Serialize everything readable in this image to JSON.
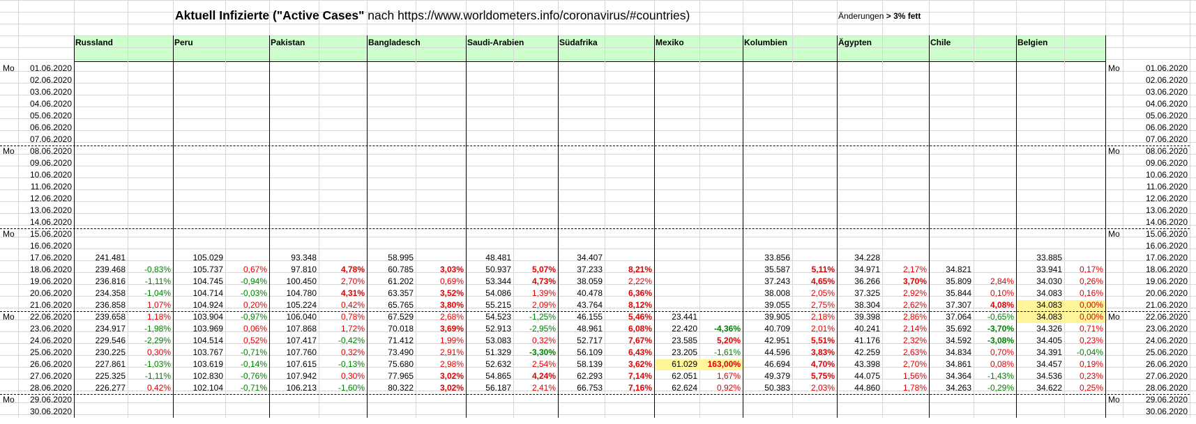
{
  "title": {
    "bold": "Aktuell Infizierte (\"Active Cases\"",
    "rest": " nach https://www.worldometers.info/coronavirus/#countries)"
  },
  "note": {
    "text": "Änderungen ",
    "bold": "> 3% fett"
  },
  "weekday_label": "Mo",
  "dates": [
    "01.06.2020",
    "02.06.2020",
    "03.06.2020",
    "04.06.2020",
    "05.06.2020",
    "06.06.2020",
    "07.06.2020",
    "08.06.2020",
    "09.06.2020",
    "10.06.2020",
    "11.06.2020",
    "12.06.2020",
    "13.06.2020",
    "14.06.2020",
    "15.06.2020",
    "16.06.2020",
    "17.06.2020",
    "18.06.2020",
    "19.06.2020",
    "20.06.2020",
    "21.06.2020",
    "22.06.2020",
    "23.06.2020",
    "24.06.2020",
    "25.06.2020",
    "26.06.2020",
    "27.06.2020",
    "28.06.2020",
    "29.06.2020",
    "30.06.2020"
  ],
  "mondays": [
    0,
    7,
    14,
    21,
    28
  ],
  "countries": [
    {
      "name": "Russland",
      "values": {
        "16": [
          "241.481",
          ""
        ],
        "17": [
          "239.468",
          "-0,83%"
        ],
        "18": [
          "236.816",
          "-1,11%"
        ],
        "19": [
          "234.358",
          "-1,04%"
        ],
        "20": [
          "236.858",
          "1,07%"
        ],
        "21": [
          "239.658",
          "1,18%"
        ],
        "22": [
          "234.917",
          "-1,98%"
        ],
        "23": [
          "229.546",
          "-2,29%"
        ],
        "24": [
          "230.225",
          "0,30%"
        ],
        "25": [
          "227.861",
          "-1,03%"
        ],
        "26": [
          "225.325",
          "-1,11%"
        ],
        "27": [
          "226.277",
          "0,42%"
        ]
      }
    },
    {
      "name": "Peru",
      "values": {
        "16": [
          "105.029",
          ""
        ],
        "17": [
          "105.737",
          "0,67%"
        ],
        "18": [
          "104.745",
          "-0,94%"
        ],
        "19": [
          "104.714",
          "-0,03%"
        ],
        "20": [
          "104.924",
          "0,20%"
        ],
        "21": [
          "103.904",
          "-0,97%"
        ],
        "22": [
          "103.969",
          "0,06%"
        ],
        "23": [
          "104.514",
          "0,52%"
        ],
        "24": [
          "103.767",
          "-0,71%"
        ],
        "25": [
          "103.619",
          "-0,14%"
        ],
        "26": [
          "102.830",
          "-0,76%"
        ],
        "27": [
          "102.104",
          "-0,71%"
        ]
      }
    },
    {
      "name": "Pakistan",
      "values": {
        "16": [
          "93.348",
          ""
        ],
        "17": [
          "97.810",
          "4,78%"
        ],
        "18": [
          "100.450",
          "2,70%"
        ],
        "19": [
          "104.780",
          "4,31%"
        ],
        "20": [
          "105.224",
          "0,42%"
        ],
        "21": [
          "106.040",
          "0,78%"
        ],
        "22": [
          "107.868",
          "1,72%"
        ],
        "23": [
          "107.417",
          "-0,42%"
        ],
        "24": [
          "107.760",
          "0,32%"
        ],
        "25": [
          "107.615",
          "-0,13%"
        ],
        "26": [
          "107.942",
          "0,30%"
        ],
        "27": [
          "106.213",
          "-1,60%"
        ]
      }
    },
    {
      "name": "Bangladesch",
      "values": {
        "16": [
          "58.995",
          ""
        ],
        "17": [
          "60.785",
          "3,03%"
        ],
        "18": [
          "61.202",
          "0,69%"
        ],
        "19": [
          "63.357",
          "3,52%"
        ],
        "20": [
          "65.765",
          "3,80%"
        ],
        "21": [
          "67.529",
          "2,68%"
        ],
        "22": [
          "70.018",
          "3,69%"
        ],
        "23": [
          "71.412",
          "1,99%"
        ],
        "24": [
          "73.490",
          "2,91%"
        ],
        "25": [
          "75.680",
          "2,98%"
        ],
        "26": [
          "77.965",
          "3,02%"
        ],
        "27": [
          "80.322",
          "3,02%"
        ]
      }
    },
    {
      "name": "Saudi-Arabien",
      "values": {
        "16": [
          "48.481",
          ""
        ],
        "17": [
          "50.937",
          "5,07%"
        ],
        "18": [
          "53.344",
          "4,73%"
        ],
        "19": [
          "54.086",
          "1,39%"
        ],
        "20": [
          "55.215",
          "2,09%"
        ],
        "21": [
          "54.523",
          "-1,25%"
        ],
        "22": [
          "52.913",
          "-2,95%"
        ],
        "23": [
          "53.083",
          "0,32%"
        ],
        "24": [
          "51.329",
          "-3,30%"
        ],
        "25": [
          "52.632",
          "2,54%"
        ],
        "26": [
          "54.865",
          "4,24%"
        ],
        "27": [
          "56.187",
          "2,41%"
        ]
      }
    },
    {
      "name": "Südafrika",
      "values": {
        "16": [
          "34.407",
          ""
        ],
        "17": [
          "37.233",
          "8,21%"
        ],
        "18": [
          "38.059",
          "2,22%"
        ],
        "19": [
          "40.478",
          "6,36%"
        ],
        "20": [
          "43.764",
          "8,12%"
        ],
        "21": [
          "46.155",
          "5,46%"
        ],
        "22": [
          "48.961",
          "6,08%"
        ],
        "23": [
          "52.717",
          "7,67%"
        ],
        "24": [
          "56.109",
          "6,43%"
        ],
        "25": [
          "58.139",
          "3,62%"
        ],
        "26": [
          "62.293",
          "7,14%"
        ],
        "27": [
          "66.753",
          "7,16%"
        ]
      }
    },
    {
      "name": "Mexiko",
      "values": {
        "21": [
          "23.441",
          ""
        ],
        "22": [
          "22.420",
          "-4,36%"
        ],
        "23": [
          "23.585",
          "5,20%"
        ],
        "24": [
          "23.205",
          "-1,61%"
        ],
        "25": [
          "61.029",
          "163,00%"
        ],
        "26": [
          "62.051",
          "1,67%"
        ],
        "27": [
          "62.624",
          "0,92%"
        ]
      }
    },
    {
      "name": "Kolumbien",
      "values": {
        "16": [
          "33.856",
          ""
        ],
        "17": [
          "35.587",
          "5,11%"
        ],
        "18": [
          "37.243",
          "4,65%"
        ],
        "19": [
          "38.008",
          "2,05%"
        ],
        "20": [
          "39.055",
          "2,75%"
        ],
        "21": [
          "39.905",
          "2,18%"
        ],
        "22": [
          "40.709",
          "2,01%"
        ],
        "23": [
          "42.951",
          "5,51%"
        ],
        "24": [
          "44.596",
          "3,83%"
        ],
        "25": [
          "46.694",
          "4,70%"
        ],
        "26": [
          "49.379",
          "5,75%"
        ],
        "27": [
          "50.383",
          "2,03%"
        ]
      }
    },
    {
      "name": "Ägypten",
      "values": {
        "16": [
          "34.228",
          ""
        ],
        "17": [
          "34.971",
          "2,17%"
        ],
        "18": [
          "36.266",
          "3,70%"
        ],
        "19": [
          "37.325",
          "2,92%"
        ],
        "20": [
          "38.304",
          "2,62%"
        ],
        "21": [
          "39.398",
          "2,86%"
        ],
        "22": [
          "40.241",
          "2,14%"
        ],
        "23": [
          "41.176",
          "2,32%"
        ],
        "24": [
          "42.259",
          "2,63%"
        ],
        "25": [
          "43.398",
          "2,70%"
        ],
        "26": [
          "44.075",
          "1,56%"
        ],
        "27": [
          "44.860",
          "1,78%"
        ]
      }
    },
    {
      "name": "Chile",
      "values": {
        "17": [
          "34.821",
          ""
        ],
        "18": [
          "35.809",
          "2,84%"
        ],
        "19": [
          "35.844",
          "0,10%"
        ],
        "20": [
          "37.307",
          "4,08%"
        ],
        "21": [
          "37.064",
          "-0,65%"
        ],
        "22": [
          "35.692",
          "-3,70%"
        ],
        "23": [
          "34.592",
          "-3,08%"
        ],
        "24": [
          "34.834",
          "0,70%"
        ],
        "25": [
          "34.861",
          "0,08%"
        ],
        "26": [
          "34.364",
          "-1,43%"
        ],
        "27": [
          "34.263",
          "-0,29%"
        ]
      }
    },
    {
      "name": "Belgien",
      "values": {
        "16": [
          "33.885",
          ""
        ],
        "17": [
          "33.941",
          "0,17%"
        ],
        "18": [
          "34.030",
          "0,26%"
        ],
        "19": [
          "34.083",
          "0,16%"
        ],
        "20": [
          "34.083",
          "0,00%"
        ],
        "21": [
          "34.083",
          "0,00%"
        ],
        "22": [
          "34.326",
          "0,71%"
        ],
        "23": [
          "34.405",
          "0,23%"
        ],
        "24": [
          "34.391",
          "-0,04%"
        ],
        "25": [
          "34.457",
          "0,19%"
        ],
        "26": [
          "34.536",
          "0,23%"
        ],
        "27": [
          "34.622",
          "0,25%"
        ]
      }
    }
  ],
  "highlights": [
    {
      "country": 6,
      "row": 25
    },
    {
      "country": 10,
      "row": 20
    },
    {
      "country": 10,
      "row": 21
    }
  ]
}
